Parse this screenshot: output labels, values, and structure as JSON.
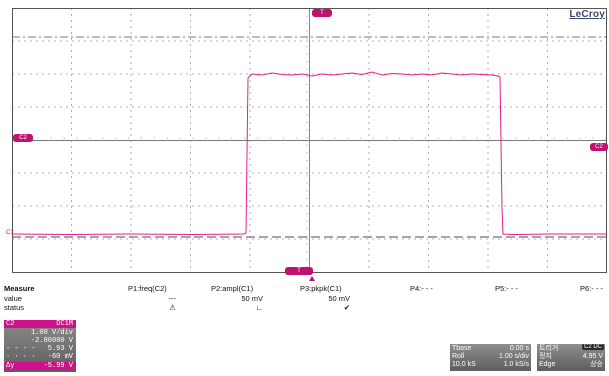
{
  "brand": "LeCroy",
  "markers": {
    "trigger_time": "T",
    "trigger_level": "T",
    "ch_offset_left": "C2",
    "ch_offset_right": "C2",
    "bottom_tag": "C1"
  },
  "colors": {
    "trace": "#e0208a",
    "grid": "#9a9a9a",
    "accent": "#c01070"
  },
  "measure": {
    "title": "Measure",
    "row_labels": [
      "value",
      "status"
    ],
    "columns": [
      {
        "header": "P1:freq(C2)",
        "value": "---",
        "status": "⚠"
      },
      {
        "header": "P2:ampl(C1)",
        "value": "50 mV",
        "status": "∟"
      },
      {
        "header": "P3:pkpk(C1)",
        "value": "50 mV",
        "status": "✔"
      },
      {
        "header": "P4:- - -",
        "value": "",
        "status": ""
      },
      {
        "header": "P5:- - -",
        "value": "",
        "status": ""
      },
      {
        "header": "P6:- - -",
        "value": "",
        "status": ""
      }
    ]
  },
  "channel_panel": {
    "header": "C2",
    "header_right": "DC1M",
    "rows": [
      {
        "k": "",
        "v": "1.00 V/div"
      },
      {
        "k": "",
        "v": "-2.80000 V"
      },
      {
        "k": "",
        "v": "5.93 V"
      },
      {
        "k": "",
        "v": "-60 mV"
      },
      {
        "k": "Δy",
        "v": "-5.99 V"
      }
    ]
  },
  "timebase": {
    "rows": [
      {
        "k": "Tbase",
        "v": "0.00 s"
      },
      {
        "k": "Roll",
        "v": "1.00 s/div"
      },
      {
        "k": "10.0 kS",
        "v": "1.0 kS/s"
      }
    ]
  },
  "trigger": {
    "tag": "C2 DC",
    "rows": [
      {
        "k": "트리거",
        "v": ""
      },
      {
        "k": "정지",
        "v": "4.95 V"
      },
      {
        "k": "Edge",
        "v": "상승"
      }
    ]
  }
}
